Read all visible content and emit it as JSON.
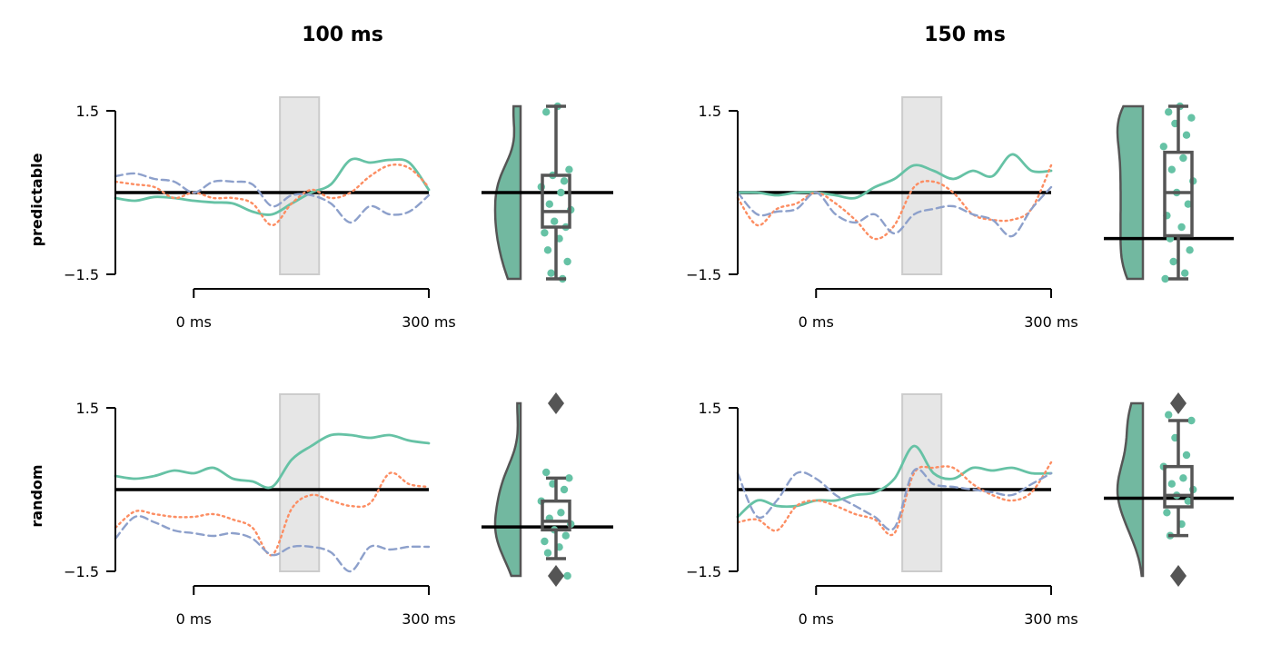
{
  "columns": [
    "100 ms",
    "150 ms"
  ],
  "rows": [
    "predictable",
    "random"
  ],
  "y_ticks": [
    "1.5",
    "−1.5"
  ],
  "x_ticks": [
    "0 ms",
    "300 ms"
  ],
  "colors": {
    "series_solid": "#66c2a5",
    "series_dotted": "#fc8d62",
    "series_dashed": "#8da0cb",
    "violin_fill": "#72b8a0",
    "box": "#555555",
    "highlight": "#e6e6e6"
  },
  "chart_data": [
    {
      "type": "line",
      "panel": "predictable / 100 ms",
      "x_range": [
        -100,
        300
      ],
      "ylim": [
        -1.5,
        1.5
      ],
      "window": [
        110,
        160
      ],
      "series": [
        {
          "style": "solid",
          "x": [
            -100,
            -75,
            -50,
            -25,
            0,
            25,
            50,
            75,
            100,
            125,
            150,
            175,
            200,
            225,
            250,
            275,
            300
          ],
          "y": [
            -0.1,
            -0.15,
            -0.08,
            -0.1,
            -0.15,
            -0.18,
            -0.2,
            -0.35,
            -0.4,
            -0.2,
            0,
            0.15,
            0.6,
            0.55,
            0.6,
            0.55,
            0.05
          ]
        },
        {
          "style": "dotted",
          "x": [
            -100,
            -75,
            -50,
            -25,
            0,
            25,
            50,
            75,
            100,
            125,
            150,
            175,
            200,
            225,
            250,
            275,
            300
          ],
          "y": [
            0.2,
            0.15,
            0.1,
            -0.1,
            0,
            -0.1,
            -0.1,
            -0.2,
            -0.6,
            -0.2,
            0.05,
            -0.1,
            0,
            0.3,
            0.5,
            0.45,
            0.1
          ]
        },
        {
          "style": "dashed",
          "x": [
            -100,
            -75,
            -50,
            -25,
            0,
            25,
            50,
            75,
            100,
            125,
            150,
            175,
            200,
            225,
            250,
            275,
            300
          ],
          "y": [
            0.3,
            0.35,
            0.25,
            0.2,
            0,
            0.2,
            0.2,
            0.15,
            -0.25,
            -0.05,
            -0.05,
            -0.2,
            -0.55,
            -0.25,
            -0.4,
            -0.35,
            -0.05
          ]
        }
      ]
    },
    {
      "type": "violin_box",
      "panel": "predictable / 100 ms",
      "ylim": [
        -1.5,
        1.5
      ],
      "mean": 0,
      "box": {
        "whisker_low": -1.5,
        "q1": -0.6,
        "median": -0.33,
        "q3": 0.3,
        "whisker_high": 1.5
      },
      "points": [
        1.5,
        1.4,
        0.4,
        0.3,
        0.2,
        0.1,
        0,
        -0.2,
        -0.3,
        -0.5,
        -0.6,
        -0.7,
        -0.8,
        -1.0,
        -1.2,
        -1.4,
        -1.5
      ],
      "outliers": []
    },
    {
      "type": "line",
      "panel": "predictable / 150 ms",
      "x_range": [
        -100,
        300
      ],
      "ylim": [
        -1.5,
        1.5
      ],
      "window": [
        110,
        160
      ],
      "series": [
        {
          "style": "solid",
          "x": [
            -100,
            -75,
            -50,
            -25,
            0,
            25,
            50,
            75,
            100,
            125,
            150,
            175,
            200,
            225,
            250,
            275,
            300
          ],
          "y": [
            0,
            0,
            -0.05,
            0,
            0,
            -0.05,
            -0.1,
            0.1,
            0.25,
            0.5,
            0.4,
            0.25,
            0.4,
            0.3,
            0.7,
            0.4,
            0.4
          ]
        },
        {
          "style": "dotted",
          "x": [
            -100,
            -75,
            -50,
            -25,
            0,
            25,
            50,
            75,
            100,
            125,
            150,
            175,
            200,
            225,
            250,
            275,
            300
          ],
          "y": [
            -0.1,
            -0.6,
            -0.3,
            -0.2,
            0,
            -0.2,
            -0.5,
            -0.85,
            -0.6,
            0.1,
            0.2,
            0,
            -0.4,
            -0.5,
            -0.5,
            -0.3,
            0.5
          ]
        },
        {
          "style": "dashed",
          "x": [
            -100,
            -75,
            -50,
            -25,
            0,
            25,
            50,
            75,
            100,
            125,
            150,
            175,
            200,
            225,
            250,
            275,
            300
          ],
          "y": [
            0,
            -0.4,
            -0.35,
            -0.3,
            0,
            -0.4,
            -0.55,
            -0.4,
            -0.75,
            -0.4,
            -0.3,
            -0.25,
            -0.4,
            -0.5,
            -0.8,
            -0.3,
            0.1
          ]
        }
      ]
    },
    {
      "type": "violin_box",
      "panel": "predictable / 150 ms",
      "ylim": [
        -1.5,
        1.5
      ],
      "mean": -0.8,
      "box": {
        "whisker_low": -1.5,
        "q1": -0.75,
        "median": 0,
        "q3": 0.7,
        "whisker_high": 1.5
      },
      "points": [
        1.5,
        1.4,
        1.3,
        1.2,
        1.0,
        0.8,
        0.6,
        0.4,
        0.2,
        0,
        -0.2,
        -0.4,
        -0.6,
        -0.8,
        -1.0,
        -1.2,
        -1.4,
        -1.5
      ],
      "outliers": []
    },
    {
      "type": "line",
      "panel": "random / 100 ms",
      "x_range": [
        -100,
        300
      ],
      "ylim": [
        -1.5,
        1.5
      ],
      "window": [
        110,
        160
      ],
      "series": [
        {
          "style": "solid",
          "x": [
            -100,
            -75,
            -50,
            -25,
            0,
            25,
            50,
            75,
            100,
            125,
            150,
            175,
            200,
            225,
            250,
            275,
            300
          ],
          "y": [
            0.25,
            0.2,
            0.25,
            0.35,
            0.3,
            0.4,
            0.2,
            0.15,
            0.05,
            0.55,
            0.8,
            1.0,
            1.0,
            0.95,
            1.0,
            0.9,
            0.85
          ]
        },
        {
          "style": "dotted",
          "x": [
            -100,
            -75,
            -50,
            -25,
            0,
            25,
            50,
            75,
            100,
            125,
            150,
            175,
            200,
            225,
            250,
            275,
            300
          ],
          "y": [
            -0.7,
            -0.4,
            -0.45,
            -0.5,
            -0.5,
            -0.45,
            -0.55,
            -0.7,
            -1.2,
            -0.35,
            -0.1,
            -0.2,
            -0.3,
            -0.25,
            0.3,
            0.1,
            0.05
          ]
        },
        {
          "style": "dashed",
          "x": [
            -100,
            -75,
            -50,
            -25,
            0,
            25,
            50,
            75,
            100,
            125,
            150,
            175,
            200,
            225,
            250,
            275,
            300
          ],
          "y": [
            -0.9,
            -0.5,
            -0.6,
            -0.75,
            -0.8,
            -0.85,
            -0.8,
            -0.9,
            -1.2,
            -1.05,
            -1.05,
            -1.15,
            -1.5,
            -1.05,
            -1.1,
            -1.05,
            -1.05
          ]
        }
      ]
    },
    {
      "type": "violin_box",
      "panel": "random / 100 ms",
      "ylim": [
        -1.5,
        1.5
      ],
      "mean": -0.65,
      "box": {
        "whisker_low": -1.2,
        "q1": -0.7,
        "median": -0.55,
        "q3": -0.2,
        "whisker_high": 0.2
      },
      "points": [
        1.5,
        0.3,
        0.2,
        0.1,
        0,
        -0.2,
        -0.4,
        -0.5,
        -0.6,
        -0.7,
        -0.8,
        -0.9,
        -1.0,
        -1.1,
        -1.5
      ],
      "outliers": [
        1.5,
        -1.5
      ]
    },
    {
      "type": "line",
      "panel": "random / 150 ms",
      "x_range": [
        -100,
        300
      ],
      "ylim": [
        -1.5,
        1.5
      ],
      "window": [
        110,
        160
      ],
      "series": [
        {
          "style": "solid",
          "x": [
            -100,
            -75,
            -50,
            -25,
            0,
            25,
            50,
            75,
            100,
            125,
            150,
            175,
            200,
            225,
            250,
            275,
            300
          ],
          "y": [
            -0.5,
            -0.2,
            -0.3,
            -0.3,
            -0.2,
            -0.2,
            -0.1,
            -0.05,
            0.2,
            0.8,
            0.3,
            0.2,
            0.4,
            0.35,
            0.4,
            0.3,
            0.3
          ]
        },
        {
          "style": "dotted",
          "x": [
            -100,
            -75,
            -50,
            -25,
            0,
            25,
            50,
            75,
            100,
            125,
            150,
            175,
            200,
            225,
            250,
            275,
            300
          ],
          "y": [
            -0.6,
            -0.55,
            -0.75,
            -0.3,
            -0.2,
            -0.3,
            -0.45,
            -0.55,
            -0.8,
            0.3,
            0.4,
            0.4,
            0.1,
            -0.1,
            -0.2,
            -0.05,
            0.5
          ]
        },
        {
          "style": "dashed",
          "x": [
            -100,
            -75,
            -50,
            -25,
            0,
            25,
            50,
            75,
            100,
            125,
            150,
            175,
            200,
            225,
            250,
            275,
            300
          ],
          "y": [
            0.3,
            -0.5,
            -0.2,
            0.3,
            0.2,
            -0.1,
            -0.3,
            -0.5,
            -0.7,
            0.35,
            0.1,
            0.05,
            0,
            -0.05,
            -0.1,
            0.1,
            0.3
          ]
        }
      ]
    },
    {
      "type": "violin_box",
      "panel": "random / 150 ms",
      "ylim": [
        -1.5,
        1.5
      ],
      "mean": -0.15,
      "box": {
        "whisker_low": -0.8,
        "q1": -0.3,
        "median": -0.1,
        "q3": 0.4,
        "whisker_high": 1.2
      },
      "points": [
        1.5,
        1.3,
        1.2,
        0.9,
        0.6,
        0.4,
        0.2,
        0.1,
        0,
        -0.1,
        -0.2,
        -0.4,
        -0.6,
        -0.8
      ],
      "outliers": [
        1.5,
        -1.5
      ]
    }
  ]
}
